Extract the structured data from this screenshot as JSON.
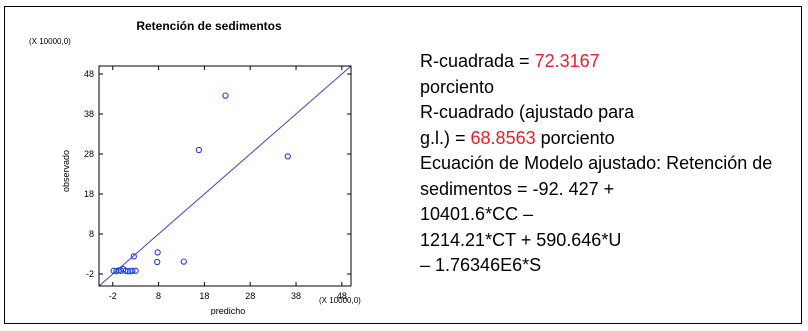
{
  "chart_data": {
    "type": "scatter",
    "title": "Retención de sedimentos",
    "xlabel": "predicho",
    "ylabel": "observado",
    "x_multiplier": "(X 10000,0)",
    "y_multiplier": "(X 10000,0)",
    "xlim": [
      -5,
      50
    ],
    "ylim": [
      -5,
      50
    ],
    "x_ticks": [
      "-2",
      "8",
      "18",
      "28",
      "38",
      "48"
    ],
    "y_ticks": [
      "-2",
      "8",
      "18",
      "28",
      "38",
      "48"
    ],
    "tick_values": [
      -2,
      8,
      18,
      28,
      38,
      48
    ],
    "grid": false,
    "marker": "circle-open",
    "marker_color": "#1f3fd6",
    "line_color": "#3949c9",
    "fit_line": {
      "x": [
        -5,
        50
      ],
      "y": [
        -5,
        50
      ]
    },
    "points": [
      {
        "x": -1.8,
        "y": -1.2
      },
      {
        "x": -1.2,
        "y": -1.3
      },
      {
        "x": -0.7,
        "y": -1.1
      },
      {
        "x": -0.2,
        "y": -1.2
      },
      {
        "x": 0.3,
        "y": -0.8
      },
      {
        "x": 0.8,
        "y": -1.2
      },
      {
        "x": 1.3,
        "y": -1.3
      },
      {
        "x": 1.8,
        "y": -1.3
      },
      {
        "x": 2.3,
        "y": -1.2
      },
      {
        "x": 3.0,
        "y": -1.2
      },
      {
        "x": 2.6,
        "y": 2.4
      },
      {
        "x": 7.7,
        "y": 1.0
      },
      {
        "x": 7.8,
        "y": 3.4
      },
      {
        "x": 13.5,
        "y": 1.1
      },
      {
        "x": 16.8,
        "y": 29.0
      },
      {
        "x": 22.6,
        "y": 42.6
      },
      {
        "x": 36.2,
        "y": 27.4
      }
    ]
  },
  "stats": [
    [
      "R-cuadrada = ",
      "72.3167"
    ],
    [
      "porciento"
    ],
    [
      "R-cuadrado (ajustado para"
    ],
    [
      "g.l.) = ",
      "68.8563",
      " porciento"
    ],
    [
      "Ecuación de Modelo ajustado: Retención de"
    ],
    [
      "sedimentos = -92. 427 +"
    ],
    [
      "10401.6*CC –"
    ],
    [
      "1214.21*CT + 590.646*U"
    ],
    [
      "– 1.76346E6*S"
    ]
  ],
  "colors": {
    "highlight": "#e8202a",
    "text": "#000000"
  }
}
